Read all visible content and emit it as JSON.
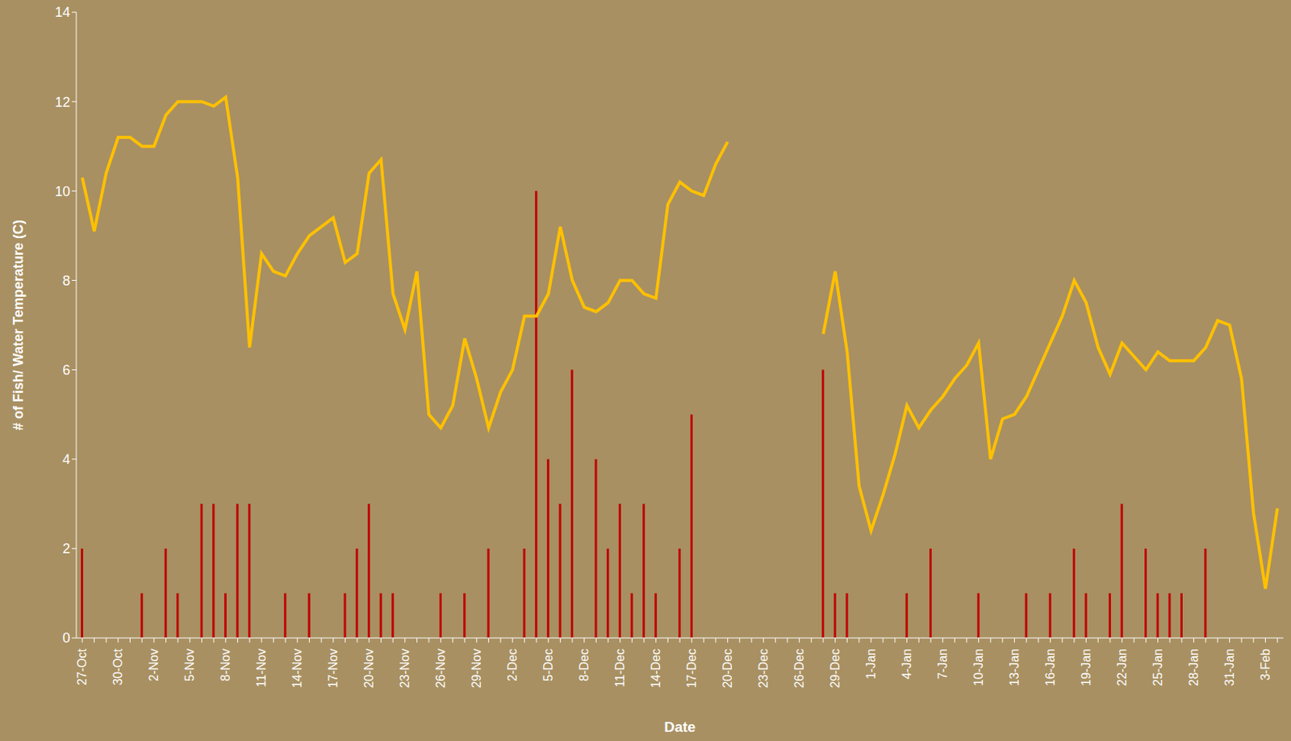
{
  "chart_data": {
    "type": "combo",
    "x_label": "Date",
    "y_label": "# of Fish/ Water Temperature (C)",
    "categories": [
      "27-Oct",
      null,
      null,
      "30-Oct",
      null,
      null,
      "2-Nov",
      null,
      null,
      "5-Nov",
      null,
      null,
      "8-Nov",
      null,
      null,
      "11-Nov",
      null,
      null,
      "14-Nov",
      null,
      null,
      "17-Nov",
      null,
      null,
      "20-Nov",
      null,
      null,
      "23-Nov",
      null,
      null,
      "26-Nov",
      null,
      null,
      "29-Nov",
      null,
      null,
      "2-Dec",
      null,
      null,
      "5-Dec",
      null,
      null,
      "8-Dec",
      null,
      null,
      "11-Dec",
      null,
      null,
      "14-Dec",
      null,
      null,
      "17-Dec",
      null,
      null,
      "20-Dec",
      null,
      null,
      "23-Dec",
      null,
      null,
      "26-Dec",
      null,
      null,
      "29-Dec",
      null,
      null,
      "1-Jan",
      null,
      null,
      "4-Jan",
      null,
      null,
      "7-Jan",
      null,
      null,
      "10-Jan",
      null,
      null,
      "13-Jan",
      null,
      null,
      "16-Jan",
      null,
      null,
      "19-Jan",
      null,
      null,
      "22-Jan",
      null,
      null,
      "25-Jan",
      null,
      null,
      "28-Jan",
      null,
      null,
      "31-Jan",
      null,
      null,
      "3-Feb",
      null
    ],
    "series": [
      {
        "type": "bar",
        "color": "#C00000",
        "values": [
          2,
          0,
          0,
          0,
          0,
          1,
          0,
          2,
          1,
          0,
          3,
          3,
          1,
          3,
          3,
          0,
          0,
          1,
          0,
          1,
          0,
          0,
          1,
          2,
          3,
          1,
          1,
          0,
          0,
          0,
          1,
          0,
          1,
          0,
          2,
          0,
          0,
          2,
          10,
          4,
          3,
          6,
          0,
          4,
          2,
          3,
          1,
          3,
          1,
          0,
          2,
          5,
          0,
          0,
          0,
          null,
          null,
          null,
          null,
          null,
          null,
          null,
          6,
          1,
          1,
          0,
          0,
          0,
          0,
          1,
          0,
          2,
          0,
          0,
          0,
          1,
          0,
          0,
          0,
          1,
          0,
          1,
          0,
          2,
          1,
          0,
          1,
          3,
          0,
          2,
          1,
          1,
          1,
          0,
          2,
          0,
          0,
          0,
          0,
          0,
          0
        ]
      },
      {
        "type": "line",
        "color": "#FFC000",
        "values": [
          10.3,
          9.1,
          10.4,
          11.2,
          11.2,
          11.0,
          11.0,
          11.7,
          12.0,
          12.0,
          12.0,
          11.9,
          12.1,
          10.3,
          6.5,
          8.6,
          8.2,
          8.1,
          8.6,
          9.0,
          9.2,
          9.4,
          8.4,
          8.6,
          10.4,
          10.7,
          7.7,
          6.9,
          8.2,
          5.0,
          4.7,
          5.2,
          6.7,
          5.8,
          4.7,
          5.5,
          6.0,
          7.2,
          7.2,
          7.7,
          9.2,
          8.0,
          7.4,
          7.3,
          7.5,
          8.0,
          8.0,
          7.7,
          7.6,
          9.7,
          10.2,
          10.0,
          9.9,
          10.6,
          11.1,
          null,
          null,
          null,
          null,
          null,
          null,
          null,
          6.8,
          8.2,
          6.4,
          3.4,
          2.4,
          3.2,
          4.1,
          5.2,
          4.7,
          5.1,
          5.4,
          5.8,
          6.1,
          6.6,
          4.0,
          4.9,
          5.0,
          5.4,
          6.0,
          6.6,
          7.2,
          8.0,
          7.5,
          6.5,
          5.9,
          6.6,
          6.3,
          6.0,
          6.4,
          6.2,
          6.2,
          6.2,
          6.5,
          7.1,
          7.0,
          5.8,
          2.8,
          1.1,
          2.9
        ]
      }
    ],
    "ylim": [
      0,
      14
    ],
    "yticks": [
      0,
      2,
      4,
      6,
      8,
      10,
      12,
      14
    ],
    "grid": false
  }
}
